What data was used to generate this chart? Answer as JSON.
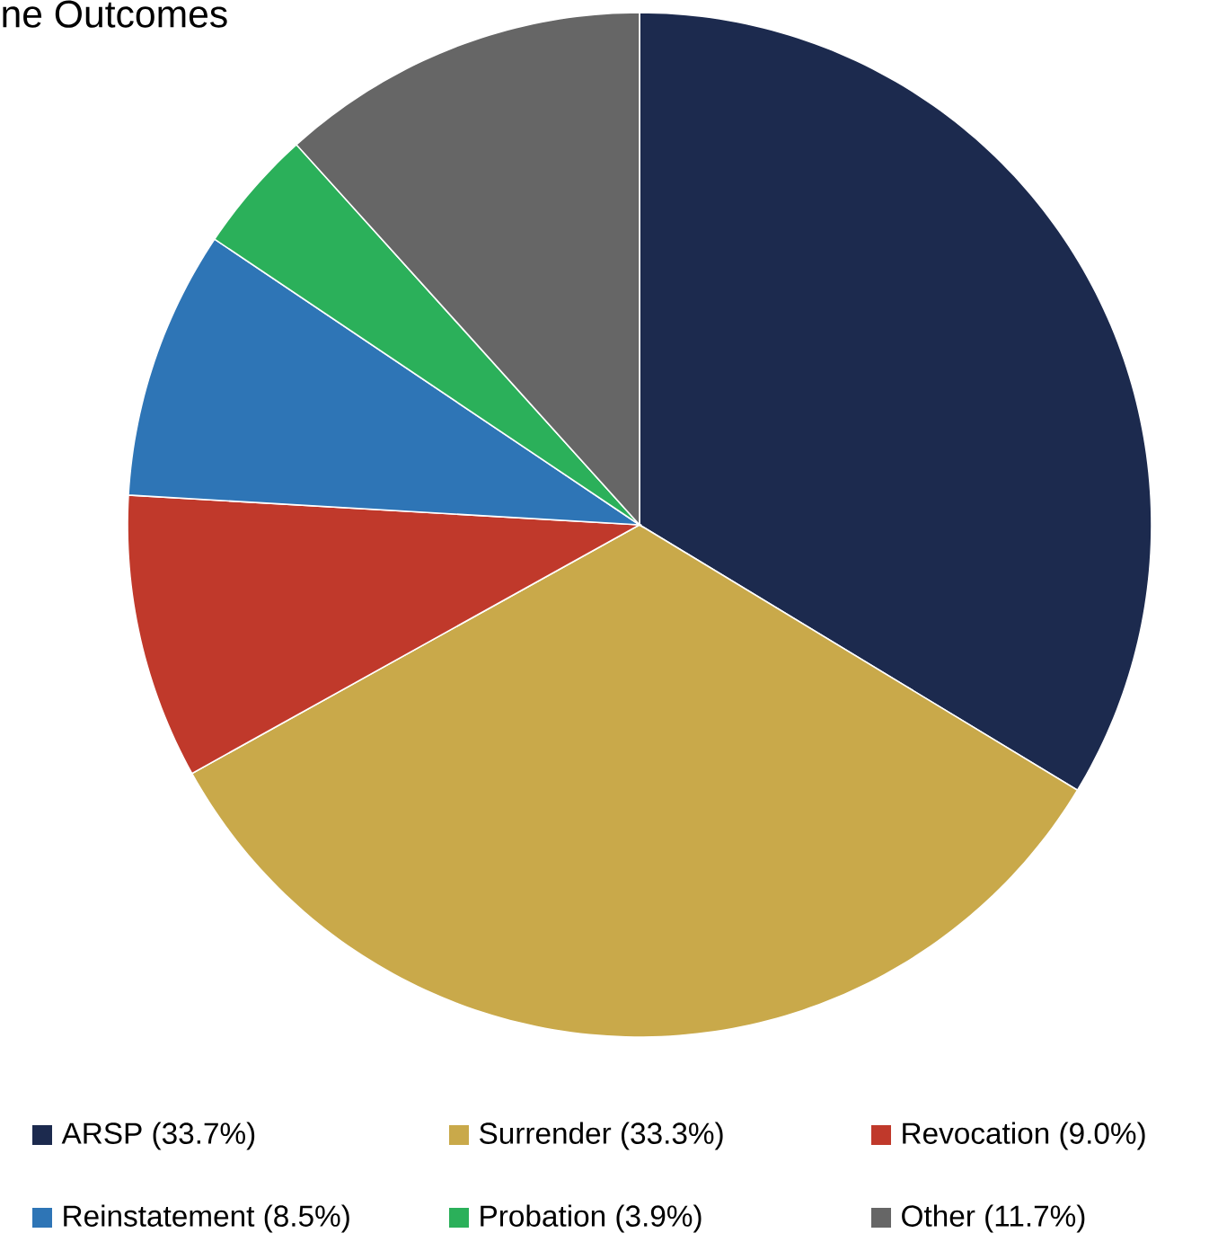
{
  "chart_data": {
    "type": "pie",
    "title": "ne Outcomes",
    "categories": [
      "ARSP (33.7%)",
      "Surrender (33.3%)",
      "Revocation (9.0%)",
      "Reinstatement (8.5%)",
      "Probation (3.9%)",
      "Other (11.7%)"
    ],
    "values": [
      33.7,
      33.3,
      9.0,
      8.5,
      3.9,
      11.7
    ],
    "colors": [
      "#1c2a4e",
      "#c9a94a",
      "#c0392b",
      "#2e75b6",
      "#2bb05a",
      "#666666"
    ],
    "legend": "bottom"
  }
}
